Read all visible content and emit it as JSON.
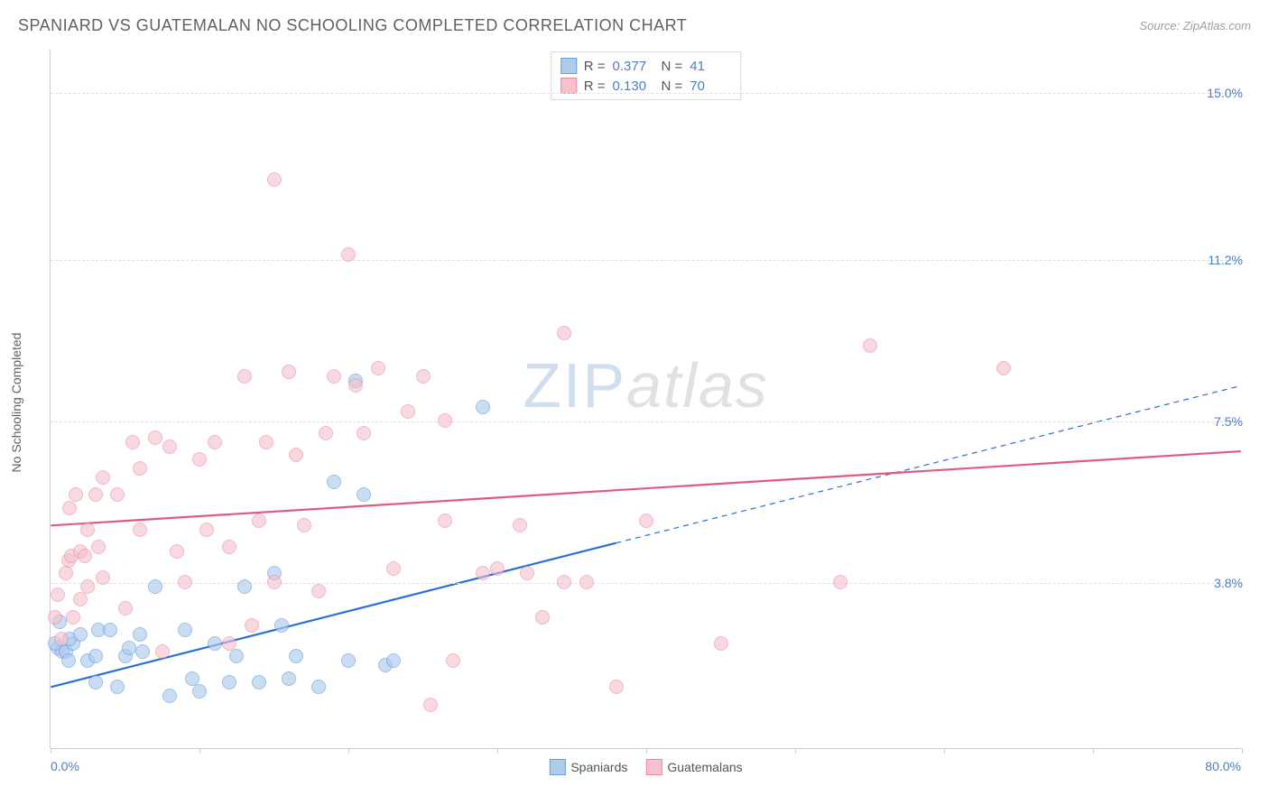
{
  "header": {
    "title": "SPANIARD VS GUATEMALAN NO SCHOOLING COMPLETED CORRELATION CHART",
    "source_prefix": "Source: ",
    "source_name": "ZipAtlas.com"
  },
  "watermark": {
    "zip": "ZIP",
    "atlas": "atlas"
  },
  "axes": {
    "y_title": "No Schooling Completed",
    "x_min_label": "0.0%",
    "x_max_label": "80.0%",
    "x_min": 0.0,
    "x_max": 80.0,
    "y_min": 0.0,
    "y_max": 16.0,
    "x_tick_step": 10.0,
    "gridlines": [
      {
        "value": 3.8,
        "label": "3.8%"
      },
      {
        "value": 7.5,
        "label": "7.5%"
      },
      {
        "value": 11.2,
        "label": "11.2%"
      },
      {
        "value": 15.0,
        "label": "15.0%"
      }
    ]
  },
  "series": [
    {
      "id": "spaniards",
      "label": "Spaniards",
      "fill_color": "#aeccec",
      "fill_opacity": 0.65,
      "stroke_color": "#6a9edb",
      "marker_radius": 8,
      "trend_color": "#2a6fd6",
      "trend_width": 2.2,
      "R": "0.377",
      "N": "41",
      "trend_start": {
        "x": 0.0,
        "y": 1.4
      },
      "trend_solid_end": {
        "x": 38.0,
        "y": 4.7
      },
      "trend_dash_end": {
        "x": 80.0,
        "y": 8.3
      },
      "points": [
        [
          0.5,
          2.3
        ],
        [
          0.8,
          2.2
        ],
        [
          1.0,
          2.2
        ],
        [
          1.2,
          2.0
        ],
        [
          1.5,
          2.4
        ],
        [
          1.3,
          2.5
        ],
        [
          0.6,
          2.9
        ],
        [
          0.3,
          2.4
        ],
        [
          2.0,
          2.6
        ],
        [
          2.5,
          2.0
        ],
        [
          3.0,
          2.1
        ],
        [
          3.2,
          2.7
        ],
        [
          3.0,
          1.5
        ],
        [
          4.0,
          2.7
        ],
        [
          4.5,
          1.4
        ],
        [
          5.0,
          2.1
        ],
        [
          5.3,
          2.3
        ],
        [
          6.0,
          2.6
        ],
        [
          6.2,
          2.2
        ],
        [
          7.0,
          3.7
        ],
        [
          8.0,
          1.2
        ],
        [
          9.0,
          2.7
        ],
        [
          9.5,
          1.6
        ],
        [
          10.0,
          1.3
        ],
        [
          11.0,
          2.4
        ],
        [
          12.0,
          1.5
        ],
        [
          12.5,
          2.1
        ],
        [
          13.0,
          3.7
        ],
        [
          14.0,
          1.5
        ],
        [
          15.0,
          4.0
        ],
        [
          15.5,
          2.8
        ],
        [
          16.0,
          1.6
        ],
        [
          16.5,
          2.1
        ],
        [
          18.0,
          1.4
        ],
        [
          19.0,
          6.1
        ],
        [
          20.0,
          2.0
        ],
        [
          21.0,
          5.8
        ],
        [
          22.5,
          1.9
        ],
        [
          23.0,
          2.0
        ],
        [
          29.0,
          7.8
        ],
        [
          20.5,
          8.4
        ]
      ]
    },
    {
      "id": "guatemalans",
      "label": "Guatemalans",
      "fill_color": "#f6c0cd",
      "fill_opacity": 0.6,
      "stroke_color": "#e88aa3",
      "marker_radius": 8,
      "trend_color": "#e05a7f",
      "trend_width": 2.2,
      "R": "0.130",
      "N": "70",
      "trend_start": {
        "x": 0.0,
        "y": 5.1
      },
      "trend_solid_end": {
        "x": 80.0,
        "y": 6.8
      },
      "trend_dash_end": null,
      "points": [
        [
          0.3,
          3.0
        ],
        [
          0.5,
          3.5
        ],
        [
          0.7,
          2.5
        ],
        [
          1.0,
          4.0
        ],
        [
          1.2,
          4.3
        ],
        [
          1.4,
          4.4
        ],
        [
          1.5,
          3.0
        ],
        [
          1.3,
          5.5
        ],
        [
          1.7,
          5.8
        ],
        [
          2.0,
          4.5
        ],
        [
          2.0,
          3.4
        ],
        [
          2.3,
          4.4
        ],
        [
          2.5,
          5.0
        ],
        [
          2.5,
          3.7
        ],
        [
          3.0,
          5.8
        ],
        [
          3.2,
          4.6
        ],
        [
          3.5,
          3.9
        ],
        [
          3.5,
          6.2
        ],
        [
          4.5,
          5.8
        ],
        [
          5.0,
          3.2
        ],
        [
          5.5,
          7.0
        ],
        [
          6.0,
          5.0
        ],
        [
          6.0,
          6.4
        ],
        [
          7.0,
          7.1
        ],
        [
          7.5,
          2.2
        ],
        [
          8.0,
          6.9
        ],
        [
          8.5,
          4.5
        ],
        [
          9.0,
          3.8
        ],
        [
          10.0,
          6.6
        ],
        [
          10.5,
          5.0
        ],
        [
          11.0,
          7.0
        ],
        [
          12.0,
          2.4
        ],
        [
          12.0,
          4.6
        ],
        [
          13.0,
          8.5
        ],
        [
          13.5,
          2.8
        ],
        [
          14.0,
          5.2
        ],
        [
          14.5,
          7.0
        ],
        [
          15.0,
          13.0
        ],
        [
          15.0,
          3.8
        ],
        [
          16.0,
          8.6
        ],
        [
          16.5,
          6.7
        ],
        [
          17.0,
          5.1
        ],
        [
          18.0,
          3.6
        ],
        [
          18.5,
          7.2
        ],
        [
          19.0,
          8.5
        ],
        [
          20.0,
          11.3
        ],
        [
          20.5,
          8.3
        ],
        [
          21.0,
          7.2
        ],
        [
          22.0,
          8.7
        ],
        [
          23.0,
          4.1
        ],
        [
          24.0,
          7.7
        ],
        [
          25.0,
          8.5
        ],
        [
          25.5,
          1.0
        ],
        [
          26.5,
          5.2
        ],
        [
          27.0,
          2.0
        ],
        [
          29.0,
          4.0
        ],
        [
          30.0,
          4.1
        ],
        [
          31.5,
          5.1
        ],
        [
          32.0,
          4.0
        ],
        [
          33.0,
          3.0
        ],
        [
          34.5,
          3.8
        ],
        [
          36.0,
          3.8
        ],
        [
          38.0,
          1.4
        ],
        [
          40.0,
          5.2
        ],
        [
          45.0,
          2.4
        ],
        [
          53.0,
          3.8
        ],
        [
          55.0,
          9.2
        ],
        [
          64.0,
          8.7
        ],
        [
          34.5,
          9.5
        ],
        [
          26.5,
          7.5
        ]
      ]
    }
  ],
  "stats_box": {
    "R_label": "R =",
    "N_label": "N ="
  },
  "legend": {
    "items": [
      {
        "series": "spaniards"
      },
      {
        "series": "guatemalans"
      }
    ]
  },
  "colors": {
    "background": "#ffffff",
    "grid": "#e0e0e0",
    "axis": "#cfcfcf",
    "tick_label": "#4a7ec9",
    "title_text": "#616161"
  }
}
